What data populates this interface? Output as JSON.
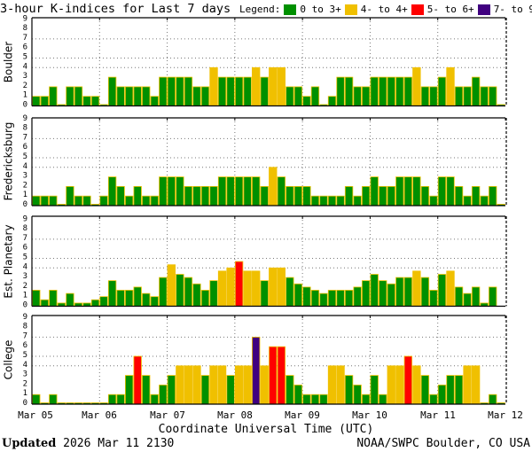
{
  "chart_data": {
    "type": "bar",
    "title": "3-hour K-indices for Last 7 days",
    "xlabel": "Coordinate Universal Time (UTC)",
    "x_tick_labels": [
      "Mar 05",
      "Mar 06",
      "Mar 07",
      "Mar 08",
      "Mar 09",
      "Mar 10",
      "Mar 11",
      "Mar 12"
    ],
    "bars_per_day": 8,
    "ylim": [
      0,
      9
    ],
    "y_ticks": [
      "0",
      "1",
      "2",
      "3",
      "4",
      "5",
      "6",
      "7",
      "8",
      "9"
    ],
    "grid": {
      "horizontal": [
        4,
        5,
        7
      ],
      "vertical": "day boundaries",
      "style": "dotted"
    },
    "legend": {
      "label": "Legend:",
      "position": "top-right",
      "entries": [
        {
          "label": "0 to 3+",
          "color": "#009000"
        },
        {
          "label": "4- to 4+",
          "color": "#f0c000"
        },
        {
          "label": "5- to 6+",
          "color": "#ff0000"
        },
        {
          "label": "7- to 9",
          "color": "#400080"
        }
      ]
    },
    "panels": [
      {
        "ylabel": "Boulder",
        "values": [
          1,
          1,
          2,
          0,
          2,
          2,
          1,
          1,
          0,
          3,
          2,
          2,
          2,
          2,
          1,
          3,
          3,
          3,
          3,
          2,
          2,
          4,
          3,
          3,
          3,
          3,
          4,
          3,
          4,
          4,
          2,
          2,
          1,
          2,
          0,
          1,
          3,
          3,
          2,
          2,
          3,
          3,
          3,
          3,
          3,
          4,
          2,
          2,
          3,
          4,
          2,
          2,
          3,
          2,
          2,
          0
        ]
      },
      {
        "ylabel": "Fredericksburg",
        "values": [
          1,
          1,
          1,
          0,
          2,
          1,
          1,
          0,
          1,
          3,
          2,
          1,
          2,
          1,
          1,
          3,
          3,
          3,
          2,
          2,
          2,
          2,
          3,
          3,
          3,
          3,
          3,
          2,
          4,
          3,
          2,
          2,
          2,
          1,
          1,
          1,
          1,
          2,
          1,
          2,
          3,
          2,
          2,
          3,
          3,
          3,
          2,
          1,
          3,
          3,
          2,
          1,
          2,
          1,
          2,
          0
        ]
      },
      {
        "ylabel": "Est. Planetary",
        "values": [
          1.67,
          0.67,
          1.67,
          0.33,
          1.33,
          0.33,
          0.33,
          0.67,
          1.0,
          2.67,
          1.67,
          1.67,
          2.0,
          1.33,
          1.0,
          3.0,
          4.33,
          3.33,
          3.0,
          2.33,
          1.67,
          2.67,
          3.67,
          4.0,
          4.67,
          3.67,
          3.67,
          2.67,
          4.0,
          4.0,
          3.0,
          2.33,
          2.0,
          1.67,
          1.33,
          1.67,
          1.67,
          1.67,
          2.0,
          2.67,
          3.33,
          2.67,
          2.33,
          3.0,
          3.0,
          3.67,
          3.0,
          1.67,
          3.33,
          3.67,
          2.0,
          1.33,
          2.0,
          0.33,
          2.0,
          null
        ]
      },
      {
        "ylabel": "College",
        "values": [
          1,
          0,
          1,
          0,
          0,
          0,
          0,
          0,
          0,
          1,
          1,
          3,
          5,
          3,
          1,
          2,
          3,
          4,
          4,
          4,
          3,
          4,
          4,
          3,
          4,
          4,
          7,
          4,
          6,
          6,
          3,
          2,
          1,
          1,
          1,
          4,
          4,
          3,
          2,
          1,
          3,
          1,
          4,
          4,
          5,
          4,
          3,
          1,
          2,
          3,
          3,
          4,
          4,
          0,
          1,
          0
        ]
      }
    ]
  },
  "footer": {
    "updated_label": "Updated",
    "updated_value": "2026 Mar 11 2130",
    "credit": "NOAA/SWPC Boulder, CO USA"
  }
}
